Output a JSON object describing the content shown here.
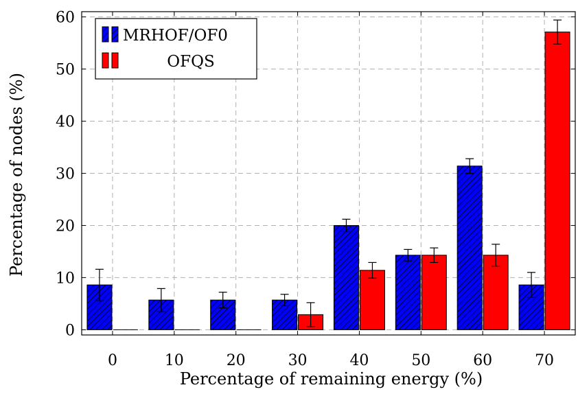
{
  "chart_data": {
    "type": "bar",
    "title": "",
    "xlabel": "Percentage of remaining energy (%)",
    "ylabel": "Percentage of nodes (%)",
    "categories": [
      "0",
      "10",
      "20",
      "30",
      "40",
      "50",
      "60",
      "70"
    ],
    "ylim": [
      -1,
      61
    ],
    "yticks": [
      0,
      10,
      20,
      30,
      40,
      50,
      60
    ],
    "grid": true,
    "legend_position": "top-left",
    "series": [
      {
        "name": "MRHOF/OF0",
        "color": "#0000ff",
        "pattern": "diagonal-hatch",
        "values": [
          8.6,
          5.7,
          5.7,
          5.7,
          20.0,
          14.3,
          31.4,
          8.6
        ],
        "errors": [
          3.0,
          2.2,
          1.5,
          1.1,
          1.2,
          1.1,
          1.4,
          2.4
        ]
      },
      {
        "name": "OFQS",
        "color": "#ff0000",
        "pattern": "solid",
        "values": [
          0,
          0,
          0,
          2.9,
          11.4,
          14.3,
          14.3,
          57.1
        ],
        "errors": [
          0,
          0,
          0,
          2.3,
          1.5,
          1.4,
          2.1,
          2.3
        ]
      }
    ]
  }
}
